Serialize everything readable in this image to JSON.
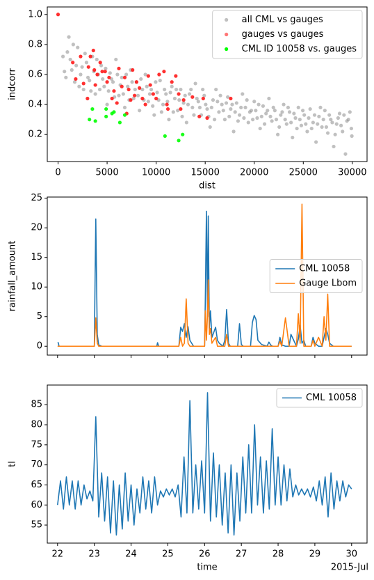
{
  "chart_data": [
    {
      "type": "scatter",
      "xlabel": "dist",
      "ylabel": "indcorr",
      "xlim": [
        -1100,
        31500
      ],
      "xticks": [
        0,
        5000,
        10000,
        15000,
        20000,
        25000,
        30000
      ],
      "ylim": [
        0.02,
        1.05
      ],
      "yticks": [
        0.2,
        0.4,
        0.6,
        0.8,
        {
          "value": 1,
          "label": "1.0"
        }
      ],
      "legend": "upper right",
      "series": [
        {
          "name": "all CML vs gauges",
          "color": "#8c8c8c",
          "x": [
            500,
            800,
            1100,
            1400,
            1700,
            2000,
            2300,
            2600,
            2900,
            3200,
            3500,
            3800,
            4100,
            4400,
            4700,
            5000,
            5300,
            5600,
            5900,
            6200,
            6500,
            6800,
            7100,
            7400,
            7700,
            8000,
            8300,
            8600,
            8900,
            9200,
            9500,
            9800,
            10100,
            10400,
            10700,
            11000,
            11300,
            11600,
            11900,
            12200,
            12500,
            12800,
            13100,
            13400,
            13700,
            14000,
            14300,
            14600,
            14900,
            15200,
            15500,
            15800,
            16100,
            16400,
            16700,
            17000,
            17300,
            17600,
            17900,
            18200,
            18500,
            18800,
            19100,
            19400,
            19700,
            20000,
            20300,
            20600,
            20900,
            21200,
            21500,
            21800,
            22100,
            22400,
            22700,
            23000,
            23300,
            23600,
            23900,
            24200,
            24500,
            24800,
            25100,
            25400,
            25700,
            26000,
            26300,
            26600,
            26900,
            27200,
            27500,
            27800,
            28100,
            28400,
            28700,
            29000,
            29300,
            29600,
            29900,
            650,
            950,
            1250,
            1550,
            1850,
            2150,
            2450,
            2750,
            3050,
            3350,
            3650,
            3950,
            4250,
            4550,
            4850,
            5150,
            5450,
            5750,
            6050,
            6350,
            6650,
            6950,
            7250,
            7550,
            7850,
            8150,
            8450,
            8750,
            9050,
            9350,
            9650,
            9950,
            10250,
            10550,
            10850,
            11150,
            11450,
            11750,
            12050,
            12350,
            12650,
            12950,
            13250,
            13550,
            13850,
            14150,
            14450,
            14750,
            15050,
            15350,
            15650,
            15950,
            16250,
            16550,
            16850,
            17150,
            17450,
            17750,
            18050,
            18350,
            18650,
            18950,
            19250,
            19550,
            19850,
            20150,
            20450,
            20750,
            21050,
            21350,
            21650,
            21950,
            22250,
            22550,
            22850,
            23150,
            23450,
            23750,
            24050,
            24350,
            24650,
            24950,
            25250,
            25550,
            25850,
            26150,
            26450,
            26750,
            27050,
            27350,
            27650,
            27950,
            28250,
            28550,
            28850,
            29150,
            29450,
            29750,
            29950
          ],
          "values": [
            0.72,
            0.58,
            0.85,
            0.63,
            0.55,
            0.78,
            0.6,
            0.5,
            0.68,
            0.56,
            0.72,
            0.47,
            0.6,
            0.66,
            0.52,
            0.4,
            0.61,
            0.55,
            0.7,
            0.46,
            0.58,
            0.38,
            0.52,
            0.63,
            0.44,
            0.55,
            0.36,
            0.5,
            0.6,
            0.42,
            0.5,
            0.33,
            0.48,
            0.56,
            0.4,
            0.47,
            0.3,
            0.52,
            0.44,
            0.36,
            0.5,
            0.41,
            0.28,
            0.47,
            0.38,
            0.54,
            0.42,
            0.33,
            0.46,
            0.37,
            0.25,
            0.43,
            0.5,
            0.35,
            0.4,
            0.3,
            0.45,
            0.37,
            0.22,
            0.41,
            0.33,
            0.47,
            0.38,
            0.28,
            0.36,
            0.42,
            0.31,
            0.24,
            0.39,
            0.34,
            0.44,
            0.29,
            0.36,
            0.2,
            0.33,
            0.4,
            0.27,
            0.35,
            0.18,
            0.31,
            0.38,
            0.26,
            0.33,
            0.22,
            0.37,
            0.28,
            0.15,
            0.32,
            0.25,
            0.36,
            0.21,
            0.3,
            0.12,
            0.27,
            0.34,
            0.22,
            0.07,
            0.3,
            0.24,
            0.62,
            0.75,
            0.7,
            0.8,
            0.66,
            0.52,
            0.65,
            0.74,
            0.58,
            0.49,
            0.62,
            0.7,
            0.5,
            0.57,
            0.64,
            0.49,
            0.57,
            0.45,
            0.6,
            0.53,
            0.47,
            0.6,
            0.43,
            0.55,
            0.5,
            0.46,
            0.57,
            0.43,
            0.52,
            0.47,
            0.39,
            0.55,
            0.43,
            0.35,
            0.5,
            0.42,
            0.48,
            0.35,
            0.5,
            0.43,
            0.32,
            0.46,
            0.4,
            0.5,
            0.33,
            0.44,
            0.38,
            0.5,
            0.4,
            0.32,
            0.38,
            0.3,
            0.42,
            0.46,
            0.36,
            0.41,
            0.32,
            0.4,
            0.35,
            0.29,
            0.38,
            0.31,
            0.43,
            0.35,
            0.3,
            0.36,
            0.4,
            0.32,
            0.27,
            0.36,
            0.32,
            0.38,
            0.3,
            0.25,
            0.35,
            0.3,
            0.38,
            0.28,
            0.34,
            0.24,
            0.3,
            0.36,
            0.27,
            0.31,
            0.24,
            0.33,
            0.27,
            0.38,
            0.3,
            0.25,
            0.33,
            0.28,
            0.2,
            0.31,
            0.26,
            0.33,
            0.29,
            0.35,
            0.19
          ]
        },
        {
          "name": "gauges vs gauges",
          "color": "#ff1a1a",
          "x": [
            0,
            1500,
            1800,
            2300,
            2600,
            3000,
            3100,
            3300,
            3600,
            3700,
            3800,
            4000,
            4300,
            4500,
            4800,
            5000,
            5200,
            5500,
            5700,
            6000,
            6200,
            6500,
            6800,
            7000,
            7200,
            7400,
            7600,
            7800,
            8000,
            8300,
            8600,
            8900,
            9200,
            9400,
            9700,
            10000,
            10300,
            10800,
            11100,
            11200,
            11600,
            12000,
            12300,
            12500,
            12800,
            13700,
            14400,
            14800,
            15200,
            17600
          ],
          "values": [
            1.0,
            0.68,
            0.57,
            0.72,
            0.54,
            0.44,
            0.65,
            0.72,
            0.76,
            0.63,
            0.53,
            0.6,
            0.68,
            0.62,
            0.62,
            0.55,
            0.58,
            0.44,
            0.49,
            0.41,
            0.64,
            0.52,
            0.58,
            0.34,
            0.5,
            0.43,
            0.63,
            0.46,
            0.55,
            0.51,
            0.44,
            0.4,
            0.59,
            0.53,
            0.47,
            0.44,
            0.6,
            0.62,
            0.4,
            0.37,
            0.55,
            0.59,
            0.47,
            0.37,
            0.43,
            0.45,
            0.32,
            0.44,
            0.31,
            0.44
          ]
        },
        {
          "name": "CML ID 10058 vs. gauges",
          "color": "#00ff00",
          "x": [
            3200,
            3500,
            3800,
            4900,
            4900,
            5500,
            5700,
            6300,
            6800,
            10900,
            12300,
            12700
          ],
          "values": [
            0.3,
            0.37,
            0.29,
            0.37,
            0.32,
            0.34,
            0.35,
            0.28,
            0.33,
            0.19,
            0.16,
            0.2
          ]
        }
      ]
    },
    {
      "type": "line",
      "ylabel": "rainfall_amount",
      "xlim": [
        21.72,
        30.42
      ],
      "xticks": [
        22,
        23,
        24,
        25,
        26,
        27,
        28,
        29,
        30
      ],
      "xticklabels": false,
      "ylim": [
        -1.5,
        25.2
      ],
      "yticks": [
        0,
        5,
        10,
        15,
        20,
        25
      ],
      "legend": "center right",
      "x": [
        22.0,
        22.02,
        22.04,
        23.0,
        23.04,
        23.08,
        23.12,
        23.2,
        24.7,
        24.72,
        24.75,
        25.3,
        25.35,
        25.4,
        25.45,
        25.5,
        25.55,
        25.6,
        25.65,
        25.7,
        26.0,
        26.02,
        26.05,
        26.08,
        26.1,
        26.13,
        26.16,
        26.2,
        26.3,
        26.35,
        26.4,
        26.5,
        26.55,
        26.6,
        26.65,
        26.7,
        26.9,
        26.95,
        27.0,
        27.05,
        27.25,
        27.3,
        27.35,
        27.4,
        27.45,
        27.55,
        27.7,
        27.75,
        27.8,
        27.85,
        28.0,
        28.05,
        28.1,
        28.2,
        28.3,
        28.35,
        28.5,
        28.55,
        28.6,
        28.65,
        28.7,
        28.75,
        28.9,
        28.95,
        29.0,
        29.1,
        29.2,
        29.25,
        29.3,
        29.35,
        29.4,
        29.5,
        30.0
      ],
      "series": [
        {
          "name": "CML 10058",
          "color": "#1f77b4",
          "values": [
            0.6,
            0.6,
            0,
            0,
            21.5,
            2,
            0.2,
            0,
            0,
            0.6,
            0,
            0,
            3.2,
            2.5,
            3.8,
            1.5,
            3.3,
            1,
            0.5,
            0,
            0,
            8,
            22.8,
            5,
            22,
            3,
            6,
            1.5,
            3.2,
            1,
            0.5,
            0,
            1,
            6.2,
            0.5,
            0,
            0,
            3.8,
            0.3,
            0,
            0,
            4,
            5.2,
            4.5,
            1,
            0.3,
            0,
            0.7,
            0.2,
            0,
            0,
            1.5,
            0.2,
            0,
            0,
            2,
            0,
            1.2,
            3.5,
            0.5,
            1,
            0,
            0,
            1.5,
            0.5,
            0,
            0,
            1.5,
            3,
            2,
            0.5,
            0,
            0
          ]
        },
        {
          "name": "Gauge Lbom",
          "color": "#ff7f0e",
          "values": [
            0,
            0,
            0,
            0,
            4.8,
            0.5,
            0,
            0,
            0,
            0,
            0,
            0,
            1.5,
            0,
            0.5,
            8,
            0.5,
            0,
            0,
            0,
            0,
            6,
            1,
            5.5,
            11.2,
            2,
            3,
            0.5,
            1.5,
            0,
            0,
            0,
            0,
            2,
            0,
            0,
            0,
            0,
            0,
            0,
            0,
            0,
            0,
            0,
            0,
            0,
            0,
            0,
            0,
            0,
            0,
            0.8,
            0,
            4.8,
            0,
            0,
            0,
            5.5,
            0.5,
            24,
            0,
            0,
            0,
            1,
            0,
            1.5,
            0,
            5,
            1,
            8.8,
            0,
            0,
            0
          ]
        }
      ]
    },
    {
      "type": "line",
      "xlabel": "time",
      "ylabel": "tl",
      "annotation": "2015-Jul",
      "xlim": [
        21.72,
        30.42
      ],
      "xticks": [
        22,
        23,
        24,
        25,
        26,
        27,
        28,
        29,
        30
      ],
      "ylim": [
        50.5,
        89.9
      ],
      "yticks": [
        55,
        60,
        65,
        70,
        75,
        80,
        85
      ],
      "legend": "upper right",
      "x": [
        22,
        22.08,
        22.16,
        22.24,
        22.32,
        22.4,
        22.48,
        22.56,
        22.64,
        22.72,
        22.8,
        22.88,
        22.96,
        23.04,
        23.12,
        23.2,
        23.28,
        23.36,
        23.44,
        23.52,
        23.6,
        23.68,
        23.76,
        23.84,
        23.92,
        24,
        24.08,
        24.16,
        24.24,
        24.32,
        24.4,
        24.48,
        24.56,
        24.64,
        24.72,
        24.8,
        24.88,
        24.96,
        25.04,
        25.12,
        25.2,
        25.28,
        25.36,
        25.44,
        25.52,
        25.6,
        25.68,
        25.76,
        25.84,
        25.92,
        26,
        26.08,
        26.16,
        26.24,
        26.32,
        26.4,
        26.48,
        26.56,
        26.64,
        26.72,
        26.8,
        26.88,
        26.96,
        27.04,
        27.12,
        27.2,
        27.28,
        27.36,
        27.44,
        27.52,
        27.6,
        27.68,
        27.76,
        27.84,
        27.92,
        28,
        28.08,
        28.16,
        28.24,
        28.32,
        28.4,
        28.48,
        28.56,
        28.64,
        28.72,
        28.8,
        28.88,
        28.96,
        29.04,
        29.12,
        29.2,
        29.28,
        29.36,
        29.44,
        29.52,
        29.6,
        29.68,
        29.76,
        29.84,
        29.92,
        30
      ],
      "series": [
        {
          "name": "CML 10058",
          "color": "#1f77b4",
          "values": [
            60,
            66,
            59,
            67,
            60,
            66,
            59,
            66,
            60,
            65,
            61.5,
            63.5,
            61,
            82,
            57,
            68,
            56,
            67,
            53,
            66,
            52.5,
            65,
            54,
            68,
            56,
            65,
            55,
            64,
            58,
            67,
            59,
            66,
            58,
            67,
            60,
            63.5,
            62,
            64,
            62.5,
            64,
            62,
            65,
            57,
            72,
            58,
            86,
            58,
            70,
            59,
            71,
            58,
            88,
            56,
            73,
            57,
            70,
            55,
            68,
            53,
            70,
            52.5,
            68,
            56,
            72,
            58,
            75,
            58,
            80,
            60,
            72,
            58,
            71,
            59,
            79,
            60,
            72,
            60,
            70,
            61,
            69,
            62,
            65,
            62.5,
            64,
            62.5,
            64,
            62,
            64.5,
            61,
            66,
            60,
            67,
            57,
            68,
            59,
            66,
            61,
            66,
            62,
            65,
            64
          ]
        }
      ]
    }
  ]
}
